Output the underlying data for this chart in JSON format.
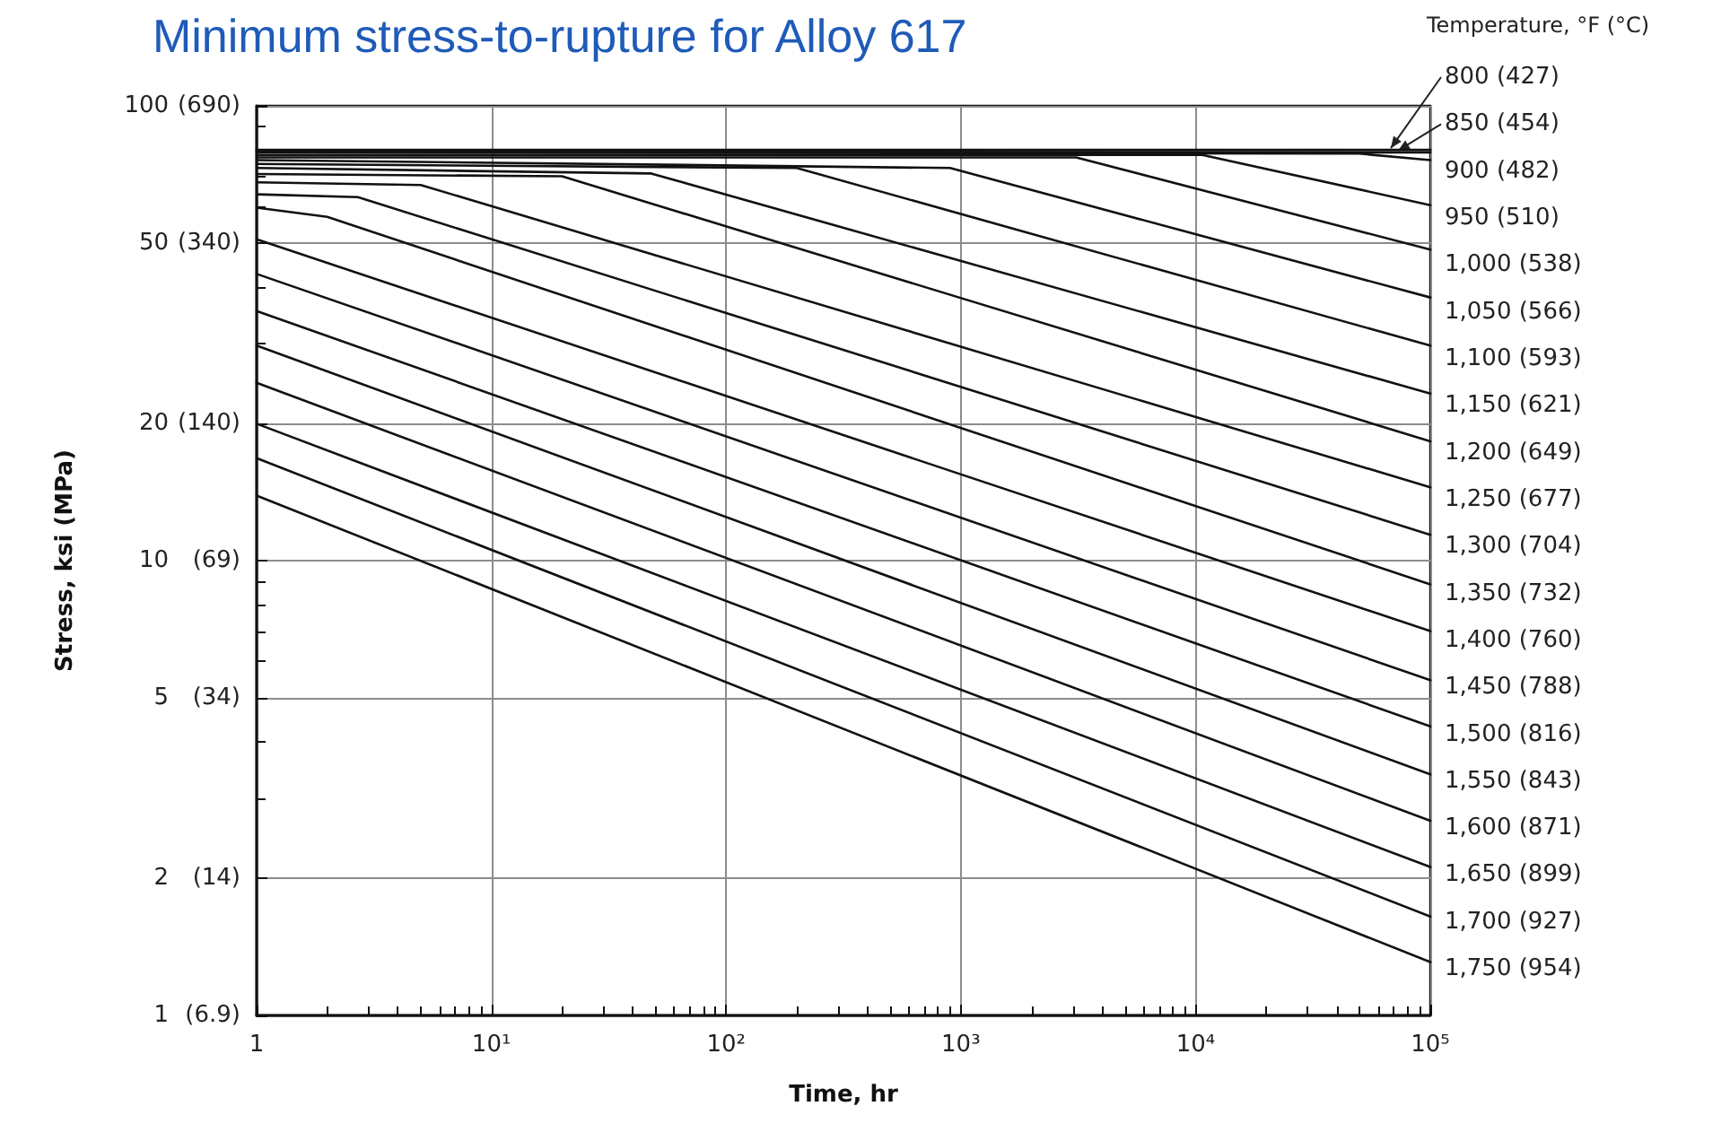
{
  "chart_data": {
    "type": "line",
    "title": "Minimum stress-to-rupture for Alloy 617",
    "xlabel": "Time, hr",
    "ylabel": "Stress, ksi (MPa)",
    "legend_title": "Temperature, °F (°C)",
    "log": "xy",
    "grid": true,
    "marker": "none",
    "line_style": "solid",
    "xlim": [
      1,
      100000
    ],
    "ylim": [
      1,
      100
    ],
    "xticks": [
      1,
      {
        "value": 10,
        "label": "10¹"
      },
      {
        "value": 100,
        "label": "10²"
      },
      {
        "value": 1000,
        "label": "10³"
      },
      {
        "value": 10000,
        "label": "10⁴"
      },
      {
        "value": 100000,
        "label": "10⁵"
      },
      {
        "value": 2,
        "label": null
      },
      {
        "value": 3,
        "label": null
      },
      {
        "value": 4,
        "label": null
      },
      {
        "value": 5,
        "label": null
      },
      {
        "value": 6,
        "label": null
      },
      {
        "value": 7,
        "label": null
      },
      {
        "value": 8,
        "label": null
      },
      {
        "value": 9,
        "label": null
      },
      {
        "value": 20,
        "label": null
      },
      {
        "value": 30,
        "label": null
      },
      {
        "value": 40,
        "label": null
      },
      {
        "value": 50,
        "label": null
      },
      {
        "value": 60,
        "label": null
      },
      {
        "value": 70,
        "label": null
      },
      {
        "value": 80,
        "label": null
      },
      {
        "value": 90,
        "label": null
      },
      {
        "value": 200,
        "label": null
      },
      {
        "value": 300,
        "label": null
      },
      {
        "value": 400,
        "label": null
      },
      {
        "value": 500,
        "label": null
      },
      {
        "value": 600,
        "label": null
      },
      {
        "value": 700,
        "label": null
      },
      {
        "value": 800,
        "label": null
      },
      {
        "value": 900,
        "label": null
      },
      {
        "value": 2000,
        "label": null
      },
      {
        "value": 3000,
        "label": null
      },
      {
        "value": 4000,
        "label": null
      },
      {
        "value": 5000,
        "label": null
      },
      {
        "value": 6000,
        "label": null
      },
      {
        "value": 7000,
        "label": null
      },
      {
        "value": 8000,
        "label": null
      },
      {
        "value": 9000,
        "label": null
      },
      {
        "value": 20000,
        "label": null
      },
      {
        "value": 30000,
        "label": null
      },
      {
        "value": 40000,
        "label": null
      },
      {
        "value": 50000,
        "label": null
      },
      {
        "value": 60000,
        "label": null
      },
      {
        "value": 70000,
        "label": null
      },
      {
        "value": 80000,
        "label": null
      },
      {
        "value": 90000,
        "label": null
      }
    ],
    "annotations": [
      "(6.9)",
      "(14)",
      "(34)",
      "(69)",
      "(140)",
      "(340)",
      "(690)"
    ],
    "yticks": [
      1,
      2,
      5,
      10,
      20,
      50,
      100,
      {
        "value": 3,
        "label": null
      },
      {
        "value": 4,
        "label": null
      },
      {
        "value": 6,
        "label": null
      },
      {
        "value": 7,
        "label": null
      },
      {
        "value": 8,
        "label": null
      },
      {
        "value": 9,
        "label": null
      },
      {
        "value": 30,
        "label": null
      },
      {
        "value": 40,
        "label": null
      },
      {
        "value": 60,
        "label": null
      },
      {
        "value": 70,
        "label": null
      },
      {
        "value": 80,
        "label": null
      },
      {
        "value": 90,
        "label": null
      }
    ],
    "series": [
      {
        "name": "800 (427)",
        "color": "#111111",
        "x": [
          1,
          100000
        ],
        "values": [
          80,
          80
        ]
      },
      {
        "name": "850 (454)",
        "color": "#111111",
        "x": [
          1,
          100000
        ],
        "values": [
          79.5,
          79
        ]
      },
      {
        "name": "900 (482)",
        "color": "#111111",
        "x": [
          1,
          50000,
          100000
        ],
        "values": [
          79,
          78.5,
          76
        ]
      },
      {
        "name": "950 (510)",
        "color": "#111111",
        "x": [
          1,
          10700,
          100000
        ],
        "values": [
          78,
          78,
          60.5
        ]
      },
      {
        "name": "1,000 (538)",
        "color": "#111111",
        "x": [
          1,
          3100,
          100000
        ],
        "values": [
          77,
          77,
          48.3
        ]
      },
      {
        "name": "1,050 (566)",
        "color": "#111111",
        "x": [
          1,
          900,
          100000
        ],
        "values": [
          76,
          73,
          37.9
        ]
      },
      {
        "name": "1,100 (593)",
        "color": "#111111",
        "x": [
          1,
          200,
          100000
        ],
        "values": [
          74.5,
          73,
          29.7
        ]
      },
      {
        "name": "1,150 (621)",
        "color": "#111111",
        "x": [
          1,
          48,
          100000
        ],
        "values": [
          73,
          71,
          23.3
        ]
      },
      {
        "name": "1,200 (649)",
        "color": "#111111",
        "x": [
          1,
          20,
          100000
        ],
        "values": [
          70.8,
          70,
          18.3
        ]
      },
      {
        "name": "1,250 (677)",
        "color": "#111111",
        "x": [
          1,
          5,
          100000
        ],
        "values": [
          67.9,
          67,
          14.5
        ]
      },
      {
        "name": "1,300 (704)",
        "color": "#111111",
        "x": [
          1,
          2.7,
          100000
        ],
        "values": [
          63.9,
          63,
          11.4
        ]
      },
      {
        "name": "1,350 (732)",
        "color": "#111111",
        "x": [
          1,
          2,
          100000
        ],
        "values": [
          59.7,
          57,
          8.87
        ]
      },
      {
        "name": "1,400 (760)",
        "color": "#111111",
        "x": [
          1,
          100000
        ],
        "values": [
          50.9,
          7.0
        ]
      },
      {
        "name": "1,450 (788)",
        "color": "#111111",
        "x": [
          1,
          100000
        ],
        "values": [
          42.7,
          5.46
        ]
      },
      {
        "name": "1,500 (816)",
        "color": "#111111",
        "x": [
          1,
          100000
        ],
        "values": [
          35.4,
          4.32
        ]
      },
      {
        "name": "1,550 (843)",
        "color": "#111111",
        "x": [
          1,
          100000
        ],
        "values": [
          29.7,
          3.39
        ]
      },
      {
        "name": "1,600 (871)",
        "color": "#111111",
        "x": [
          1,
          100000
        ],
        "values": [
          24.6,
          2.68
        ]
      },
      {
        "name": "1,650 (899)",
        "color": "#111111",
        "x": [
          1,
          100000
        ],
        "values": [
          20,
          2.12
        ]
      },
      {
        "name": "1,700 (927)",
        "color": "#111111",
        "x": [
          1,
          100000
        ],
        "values": [
          16.8,
          1.65
        ]
      },
      {
        "name": "1,750 (954)",
        "color": "#111111",
        "x": [
          1,
          100000
        ],
        "values": [
          13.9,
          1.31
        ]
      }
    ]
  }
}
